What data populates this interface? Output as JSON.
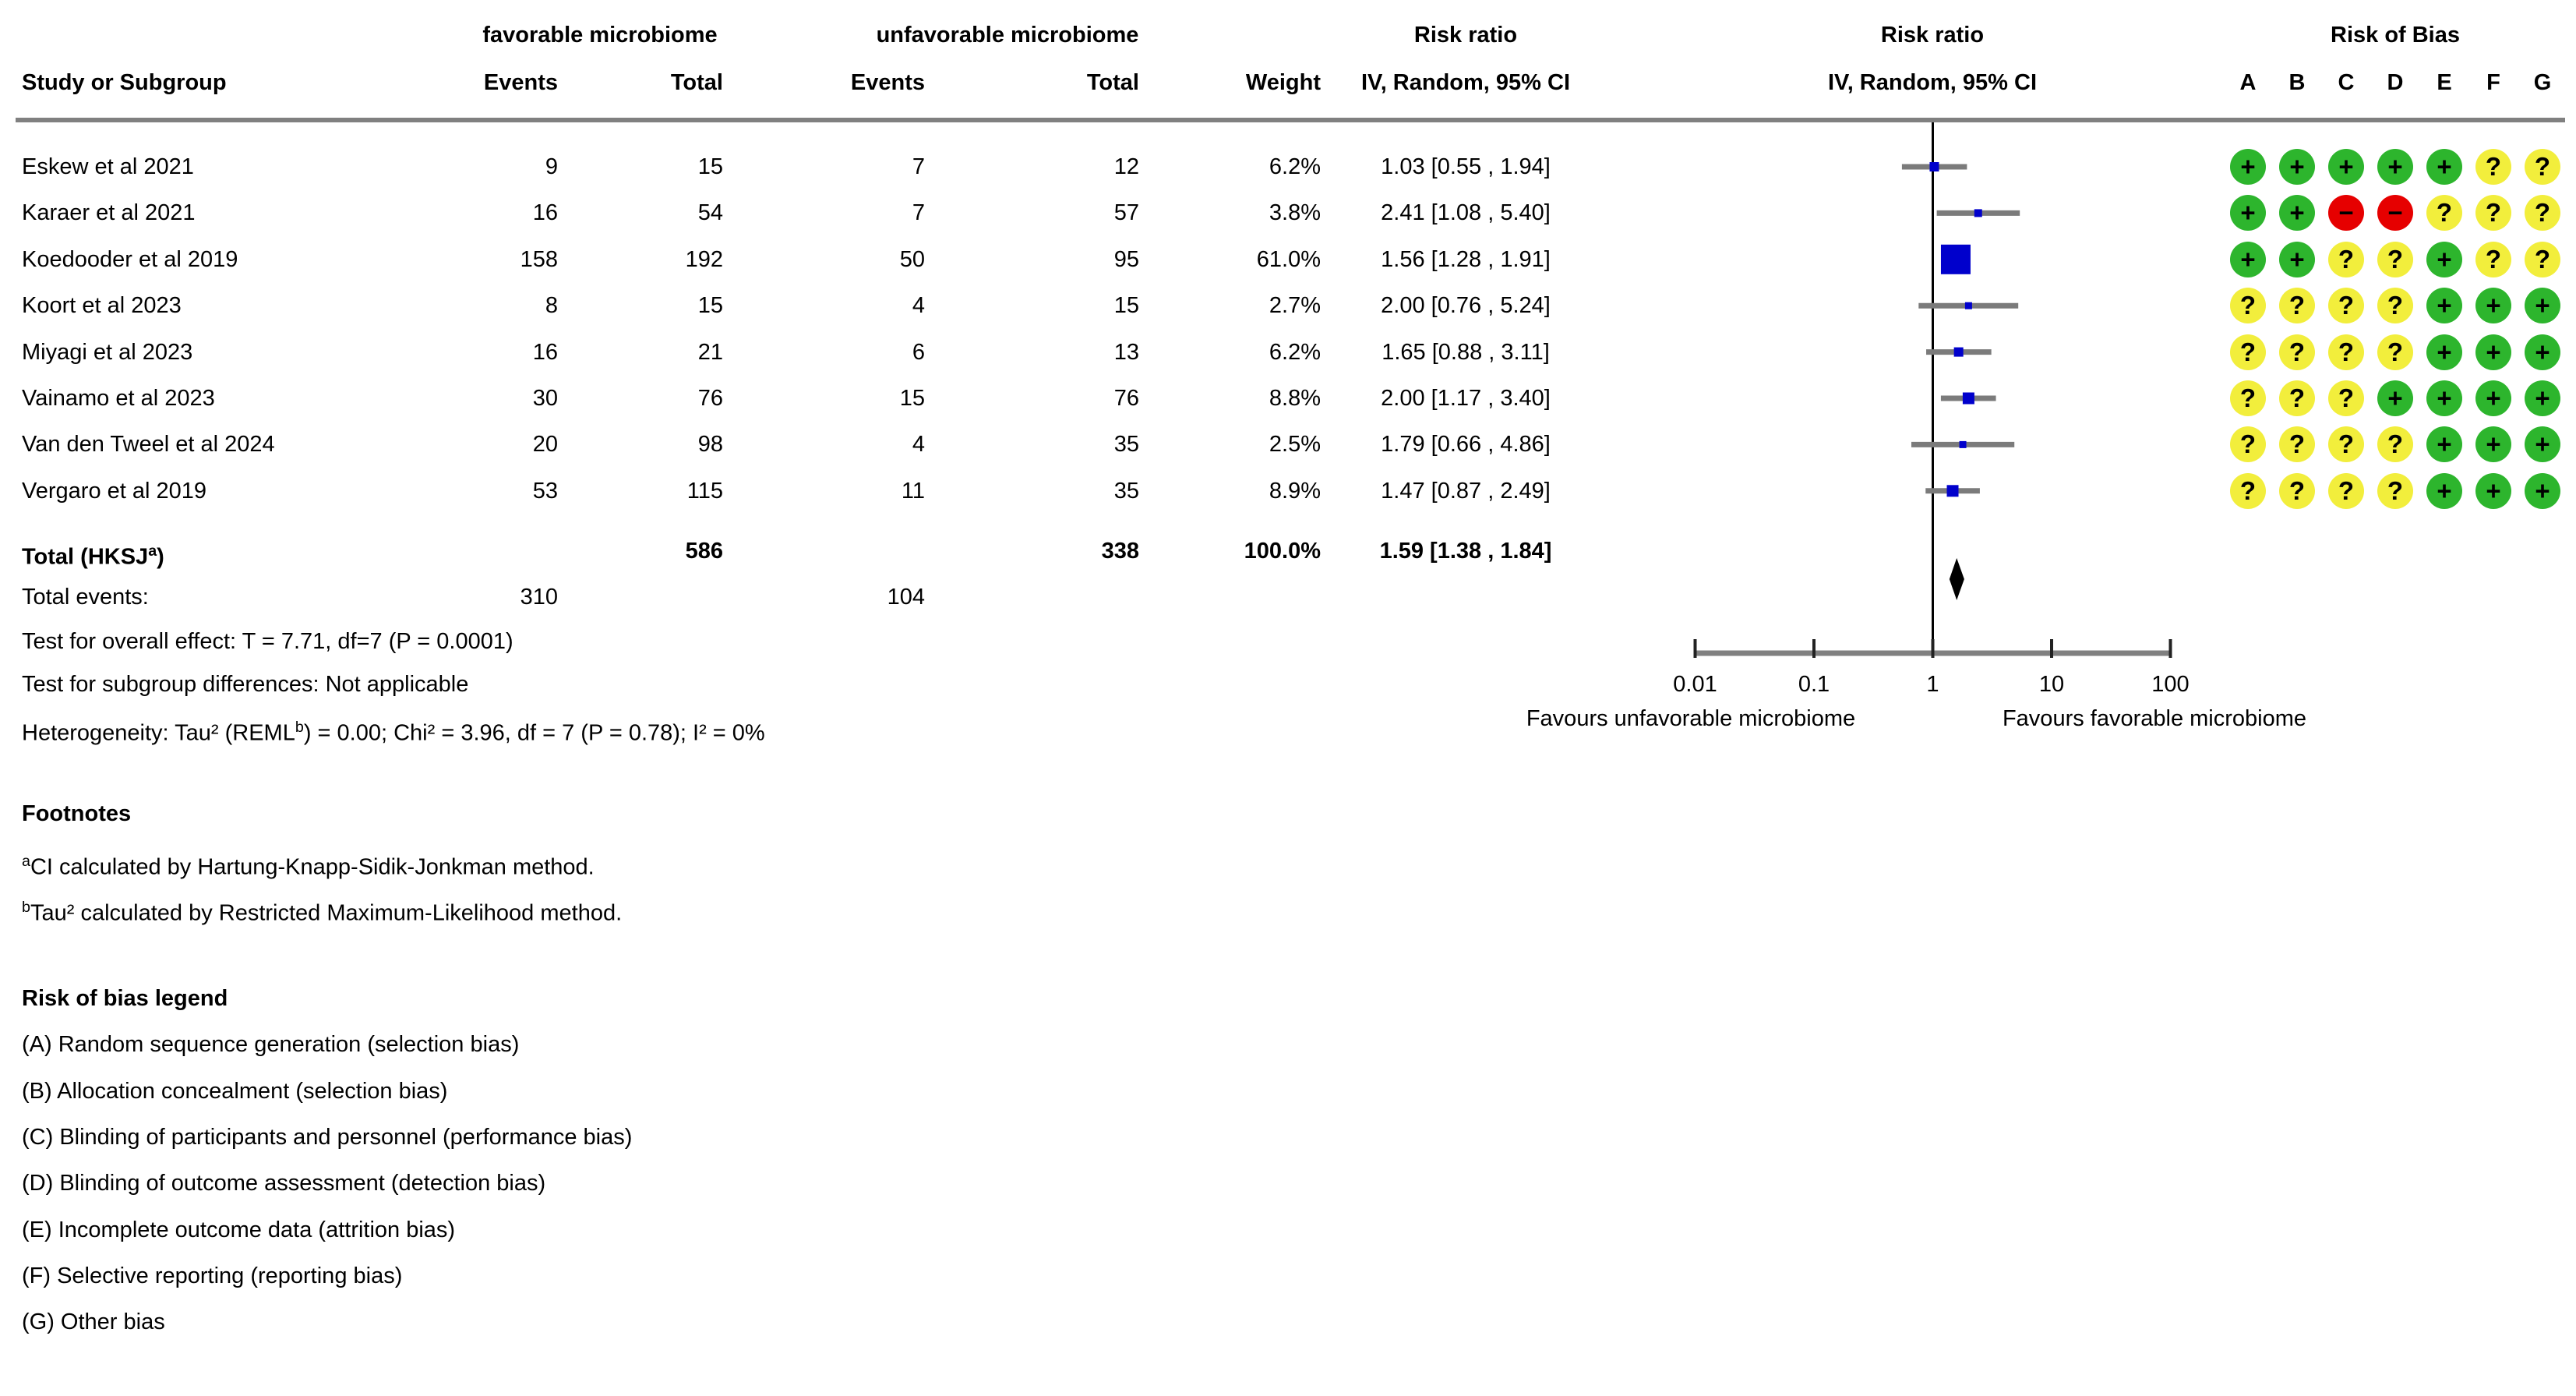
{
  "table": {
    "header": {
      "study": "Study or Subgroup",
      "group1": "favorable microbiome",
      "group2": "unfavorable microbiome",
      "events1": "Events",
      "total1": "Total",
      "events2": "Events",
      "total2": "Total",
      "weight": "Weight",
      "rr_text_title": "Risk ratio",
      "rr_text_sub": "IV, Random, 95% CI",
      "rr_plot_title": "Risk ratio",
      "rr_plot_sub": "IV, Random, 95% CI",
      "rob_title": "Risk of Bias",
      "rob_cols": [
        "A",
        "B",
        "C",
        "D",
        "E",
        "F",
        "G"
      ]
    },
    "rows": [
      {
        "study": "Eskew et al 2021",
        "e1": "9",
        "t1": "15",
        "e2": "7",
        "t2": "12",
        "weight": "6.2%",
        "ci": "1.03 [0.55 , 1.94]",
        "rob": [
          "+",
          "+",
          "+",
          "+",
          "+",
          "?",
          "?"
        ]
      },
      {
        "study": "Karaer et al 2021",
        "e1": "16",
        "t1": "54",
        "e2": "7",
        "t2": "57",
        "weight": "3.8%",
        "ci": "2.41 [1.08 , 5.40]",
        "rob": [
          "+",
          "+",
          "-",
          "-",
          "?",
          "?",
          "?"
        ]
      },
      {
        "study": "Koedooder et al 2019",
        "e1": "158",
        "t1": "192",
        "e2": "50",
        "t2": "95",
        "weight": "61.0%",
        "ci": "1.56 [1.28 , 1.91]",
        "rob": [
          "+",
          "+",
          "?",
          "?",
          "+",
          "?",
          "?"
        ]
      },
      {
        "study": "Koort et al 2023",
        "e1": "8",
        "t1": "15",
        "e2": "4",
        "t2": "15",
        "weight": "2.7%",
        "ci": "2.00 [0.76 , 5.24]",
        "rob": [
          "?",
          "?",
          "?",
          "?",
          "+",
          "+",
          "+"
        ]
      },
      {
        "study": "Miyagi et al 2023",
        "e1": "16",
        "t1": "21",
        "e2": "6",
        "t2": "13",
        "weight": "6.2%",
        "ci": "1.65 [0.88 , 3.11]",
        "rob": [
          "?",
          "?",
          "?",
          "?",
          "+",
          "+",
          "+"
        ]
      },
      {
        "study": "Vainamo et al 2023",
        "e1": "30",
        "t1": "76",
        "e2": "15",
        "t2": "76",
        "weight": "8.8%",
        "ci": "2.00 [1.17 , 3.40]",
        "rob": [
          "?",
          "?",
          "?",
          "+",
          "+",
          "+",
          "+"
        ]
      },
      {
        "study": "Van den Tweel et al 2024",
        "e1": "20",
        "t1": "98",
        "e2": "4",
        "t2": "35",
        "weight": "2.5%",
        "ci": "1.79 [0.66 , 4.86]",
        "rob": [
          "?",
          "?",
          "?",
          "?",
          "+",
          "+",
          "+"
        ]
      },
      {
        "study": "Vergaro et al 2019",
        "e1": "53",
        "t1": "115",
        "e2": "11",
        "t2": "35",
        "weight": "8.9%",
        "ci": "1.47 [0.87 , 2.49]",
        "rob": [
          "?",
          "?",
          "?",
          "?",
          "+",
          "+",
          "+"
        ]
      }
    ],
    "total_row": {
      "label_prefix": "Total (HKSJ",
      "label_sup": "a",
      "label_suffix": ")",
      "t1": "586",
      "t2": "338",
      "weight": "100.0%",
      "ci": "1.59 [1.38 , 1.84]"
    },
    "total_events": {
      "label": "Total events:",
      "e1": "310",
      "e2": "104"
    },
    "stats": {
      "overall": "Test for overall effect: T = 7.71, df=7 (P = 0.0001)",
      "subgroup": "Test for subgroup differences: Not applicable",
      "het_prefix": "Heterogeneity: Tau² (REML",
      "het_sup": "b",
      "het_suffix": ") = 0.00; Chi² = 3.96, df = 7 (P = 0.78); I² = 0%"
    }
  },
  "chart_data": {
    "type": "forest",
    "x_scale": "log10",
    "axis_ticks": [
      0.01,
      0.1,
      1,
      10,
      100
    ],
    "axis_tick_labels": [
      "0.01",
      "0.1",
      "1",
      "10",
      "100"
    ],
    "axis_range": [
      0.01,
      100
    ],
    "null_line": 1,
    "favours_left": "Favours unfavorable microbiome",
    "favours_right": "Favours favorable microbiome",
    "effect_measure": "Risk ratio",
    "model": "IV, Random, 95% CI",
    "studies": [
      {
        "name": "Eskew et al 2021",
        "rr": 1.03,
        "ci_low": 0.55,
        "ci_high": 1.94,
        "weight": 6.2
      },
      {
        "name": "Karaer et al 2021",
        "rr": 2.41,
        "ci_low": 1.08,
        "ci_high": 5.4,
        "weight": 3.8
      },
      {
        "name": "Koedooder et al 2019",
        "rr": 1.56,
        "ci_low": 1.28,
        "ci_high": 1.91,
        "weight": 61.0
      },
      {
        "name": "Koort et al 2023",
        "rr": 2.0,
        "ci_low": 0.76,
        "ci_high": 5.24,
        "weight": 2.7
      },
      {
        "name": "Miyagi et al 2023",
        "rr": 1.65,
        "ci_low": 0.88,
        "ci_high": 3.11,
        "weight": 6.2
      },
      {
        "name": "Vainamo et al 2023",
        "rr": 2.0,
        "ci_low": 1.17,
        "ci_high": 3.4,
        "weight": 8.8
      },
      {
        "name": "Van den Tweel et al 2024",
        "rr": 1.79,
        "ci_low": 0.66,
        "ci_high": 4.86,
        "weight": 2.5
      },
      {
        "name": "Vergaro et al 2019",
        "rr": 1.47,
        "ci_low": 0.87,
        "ci_high": 2.49,
        "weight": 8.9
      }
    ],
    "total": {
      "rr": 1.59,
      "ci_low": 1.38,
      "ci_high": 1.84,
      "weight": 100.0
    },
    "colors": {
      "marker": "#0000cc",
      "ci_line": "#7b7b7b",
      "diamond": "#000000",
      "axis": "#808080",
      "rule": "#808080"
    }
  },
  "rob": {
    "colors": {
      "+": "#2db52d",
      "?": "#f2ee3c",
      "-": "#e60000"
    },
    "glyphs": {
      "+": "+",
      "?": "?",
      "-": "−"
    },
    "meanings": {
      "+": "low risk",
      "?": "unclear risk",
      "-": "high risk"
    }
  },
  "footnotes": {
    "title": "Footnotes",
    "items": [
      {
        "marker": "a",
        "text": "CI calculated by Hartung-Knapp-Sidik-Jonkman method."
      },
      {
        "marker": "b",
        "text": "Tau² calculated by Restricted Maximum-Likelihood method."
      }
    ]
  },
  "rob_legend": {
    "title": "Risk of bias legend",
    "items": [
      "(A) Random sequence generation (selection bias)",
      "(B) Allocation concealment (selection bias)",
      "(C) Blinding of participants and personnel (performance bias)",
      "(D) Blinding of outcome assessment (detection bias)",
      "(E) Incomplete outcome data (attrition bias)",
      "(F) Selective reporting (reporting bias)",
      "(G) Other bias"
    ]
  }
}
